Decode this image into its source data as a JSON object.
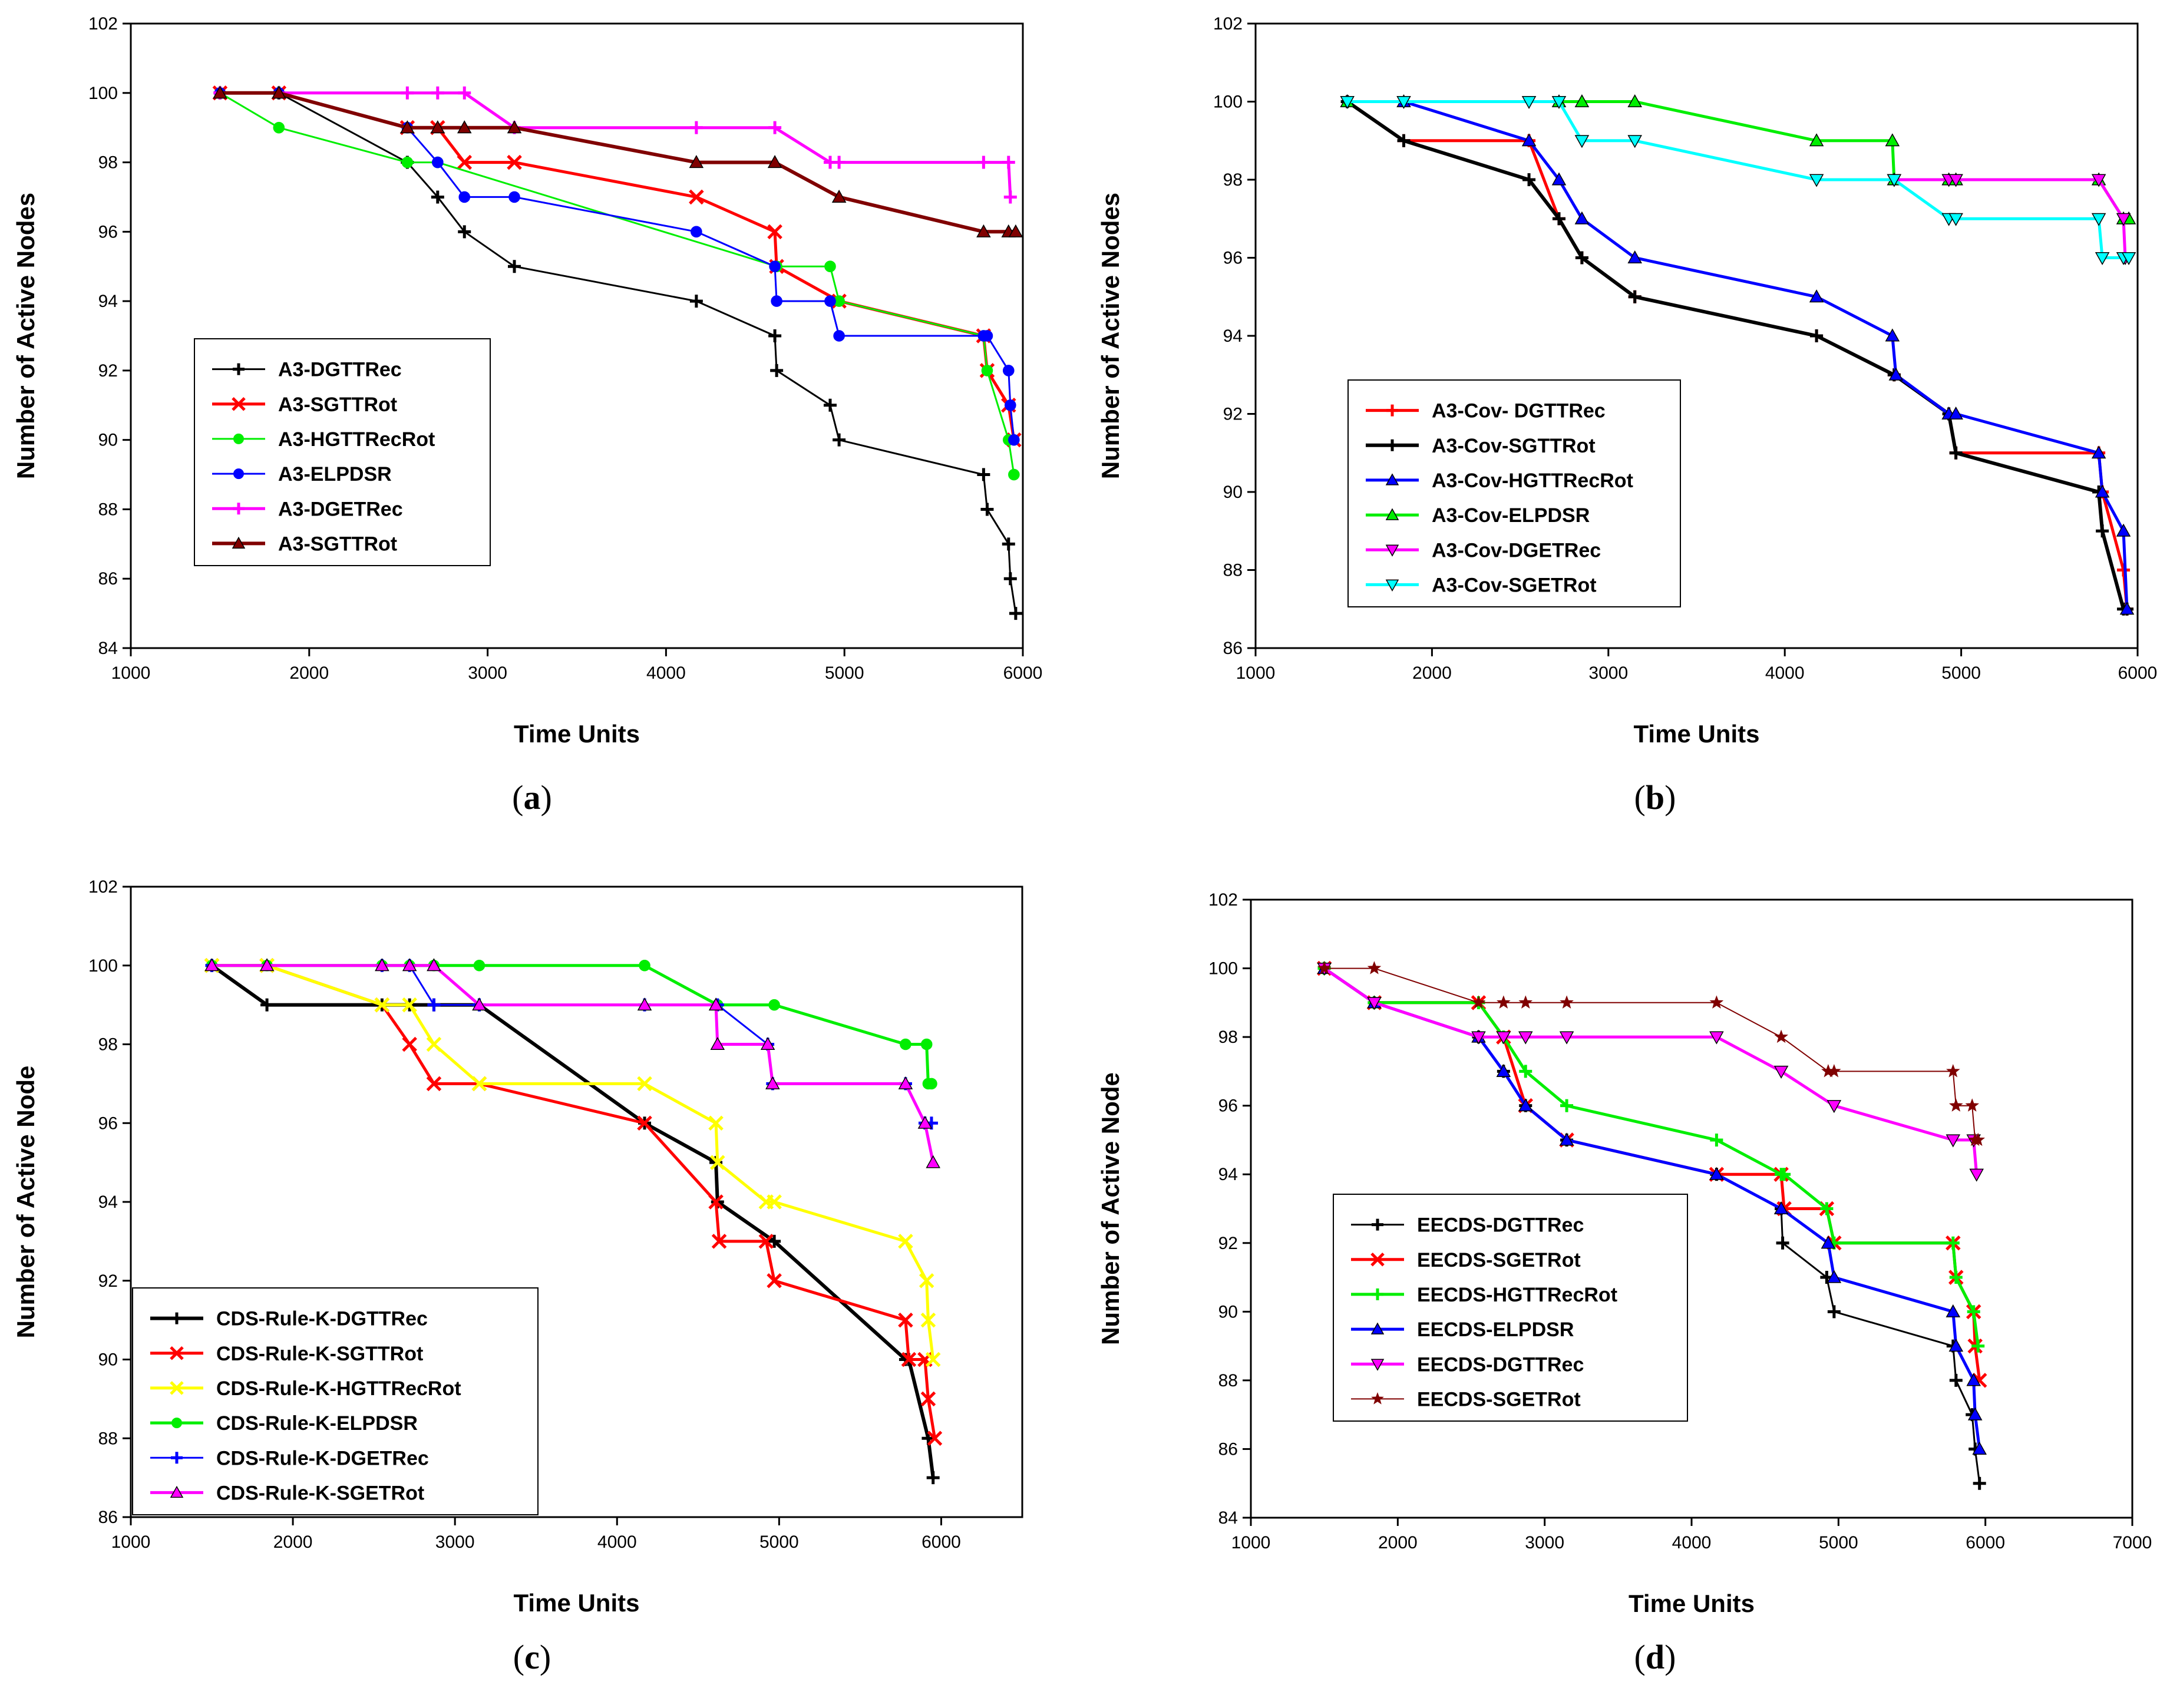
{
  "chart_data": [
    {
      "id": "a",
      "type": "line",
      "caption": "a",
      "xlabel": "Time Units",
      "ylabel": "Number of Active Nodes",
      "xlim": [
        1000,
        6000
      ],
      "ylim": [
        84,
        102
      ],
      "xticks": [
        1000,
        2000,
        3000,
        4000,
        5000,
        6000
      ],
      "yticks": [
        84,
        86,
        88,
        90,
        92,
        94,
        96,
        98,
        100,
        102
      ],
      "legend_position": "lower-left",
      "series": [
        {
          "name": "A3-DGTTRec",
          "color": "#000000",
          "marker": "plus",
          "width": 3,
          "x": [
            1500,
            1830,
            2550,
            2720,
            2870,
            3150,
            4170,
            4610,
            4620,
            4920,
            4970,
            5780,
            5800,
            5920,
            5930,
            5960
          ],
          "y": [
            100,
            100,
            98,
            97,
            96,
            95,
            94,
            93,
            92,
            91,
            90,
            89,
            88,
            87,
            86,
            85
          ]
        },
        {
          "name": "A3-SGTTRot",
          "color": "#ff0000",
          "marker": "x",
          "width": 5,
          "x": [
            1500,
            1830,
            2550,
            2720,
            2870,
            3150,
            4170,
            4610,
            4620,
            4970,
            5780,
            5800,
            5920,
            5950
          ],
          "y": [
            100,
            100,
            99,
            99,
            98,
            98,
            97,
            96,
            95,
            94,
            93,
            92,
            91,
            90
          ]
        },
        {
          "name": "A3-HGTTRecRot",
          "color": "#00ee00",
          "marker": "dot",
          "width": 3,
          "x": [
            1500,
            1830,
            2550,
            2720,
            4620,
            4920,
            4970,
            5780,
            5800,
            5920,
            5950
          ],
          "y": [
            100,
            99,
            98,
            98,
            95,
            95,
            94,
            93,
            92,
            90,
            89
          ]
        },
        {
          "name": "A3-ELPDSR",
          "color": "#0000ff",
          "marker": "dot",
          "width": 3,
          "x": [
            1500,
            1830,
            2550,
            2720,
            2870,
            3150,
            4170,
            4610,
            4620,
            4920,
            4970,
            5780,
            5800,
            5920,
            5930,
            5950
          ],
          "y": [
            100,
            100,
            99,
            98,
            97,
            97,
            96,
            95,
            94,
            94,
            93,
            93,
            93,
            92,
            91,
            90
          ]
        },
        {
          "name": "A3-DGETRec",
          "color": "#ff00ff",
          "marker": "plus",
          "width": 5,
          "x": [
            1500,
            2550,
            2720,
            2870,
            3150,
            4170,
            4610,
            4920,
            4970,
            5780,
            5920,
            5930
          ],
          "y": [
            100,
            100,
            100,
            100,
            99,
            99,
            99,
            98,
            98,
            98,
            98,
            97
          ]
        },
        {
          "name": "A3-SGTTRot",
          "color": "#800000",
          "marker": "triangle",
          "width": 6,
          "x": [
            1500,
            1830,
            2550,
            2720,
            2870,
            3150,
            4170,
            4610,
            4970,
            5780,
            5920,
            5960
          ],
          "y": [
            100,
            100,
            99,
            99,
            99,
            99,
            98,
            98,
            97,
            96,
            96,
            96
          ]
        }
      ]
    },
    {
      "id": "b",
      "type": "line",
      "caption": "b",
      "xlabel": "Time Units",
      "ylabel": "Number of Active Nodes",
      "xlim": [
        1000,
        6000
      ],
      "ylim": [
        86,
        102
      ],
      "xticks": [
        1000,
        2000,
        3000,
        4000,
        5000,
        6000
      ],
      "yticks": [
        86,
        88,
        90,
        92,
        94,
        96,
        98,
        100,
        102
      ],
      "legend_position": "lower-left",
      "series": [
        {
          "name": "A3-Cov- DGTTRec",
          "color": "#ff0000",
          "marker": "plus",
          "width": 5,
          "x": [
            1520,
            1840,
            2550,
            2720,
            2850,
            3150,
            4180,
            4620,
            4930,
            4970,
            5780,
            5800,
            5920,
            5940
          ],
          "y": [
            100,
            99,
            99,
            97,
            96,
            95,
            94,
            93,
            92,
            91,
            91,
            90,
            88,
            87
          ]
        },
        {
          "name": "A3-Cov-SGTTRot",
          "color": "#000000",
          "marker": "plus",
          "width": 6,
          "x": [
            1520,
            1840,
            2550,
            2720,
            2850,
            3150,
            4180,
            4620,
            4930,
            4970,
            5780,
            5800,
            5920,
            5940
          ],
          "y": [
            100,
            99,
            98,
            97,
            96,
            95,
            94,
            93,
            92,
            91,
            90,
            89,
            87,
            87
          ]
        },
        {
          "name": "A3-Cov-HGTTRecRot",
          "color": "#0000ff",
          "marker": "triangle",
          "width": 5,
          "x": [
            1520,
            1840,
            2550,
            2720,
            2850,
            3150,
            4180,
            4610,
            4630,
            4930,
            4970,
            5780,
            5800,
            5920,
            5940
          ],
          "y": [
            100,
            100,
            99,
            98,
            97,
            96,
            95,
            94,
            93,
            92,
            92,
            91,
            90,
            89,
            87
          ]
        },
        {
          "name": "A3-Cov-ELPDSR",
          "color": "#00ee00",
          "marker": "triangle",
          "width": 5,
          "x": [
            1520,
            2720,
            2850,
            3150,
            4180,
            4610,
            4620,
            4930,
            4970,
            5780,
            5920,
            5950
          ],
          "y": [
            100,
            100,
            100,
            100,
            99,
            99,
            98,
            98,
            98,
            98,
            97,
            97
          ]
        },
        {
          "name": "A3-Cov-DGETRec",
          "color": "#ff00ff",
          "marker": "tri-down",
          "width": 5,
          "x": [
            4620,
            4930,
            4970,
            5780,
            5920,
            5930
          ],
          "y": [
            98,
            98,
            98,
            98,
            97,
            96
          ]
        },
        {
          "name": "A3-Cov-SGETRot",
          "color": "#00ffff",
          "marker": "tri-down",
          "width": 5,
          "x": [
            1520,
            1840,
            2550,
            2720,
            2850,
            3150,
            4180,
            4620,
            4930,
            4970,
            5780,
            5800,
            5920,
            5950
          ],
          "y": [
            100,
            100,
            100,
            100,
            99,
            99,
            98,
            98,
            97,
            97,
            97,
            96,
            96,
            96
          ]
        }
      ]
    },
    {
      "id": "c",
      "type": "line",
      "caption": "c",
      "xlabel": "Time Units",
      "ylabel": "Number of Active Node",
      "xlim": [
        1000,
        6500
      ],
      "ylim": [
        86,
        102
      ],
      "xticks": [
        1000,
        2000,
        3000,
        4000,
        5000,
        6000
      ],
      "yticks": [
        86,
        88,
        90,
        92,
        94,
        96,
        98,
        100,
        102
      ],
      "legend_position": "lower-left",
      "series": [
        {
          "name": "CDS-Rule-K-DGTTRec",
          "color": "#000000",
          "marker": "plus",
          "width": 6,
          "x": [
            1500,
            1840,
            2550,
            2720,
            2870,
            3150,
            4170,
            4610,
            4620,
            4970,
            5780,
            5800,
            5920,
            5950
          ],
          "y": [
            100,
            99,
            99,
            99,
            99,
            99,
            96,
            95,
            94,
            93,
            90,
            90,
            88,
            87
          ]
        },
        {
          "name": "CDS-Rule-K-SGTTRot",
          "color": "#ff0000",
          "marker": "x",
          "width": 5,
          "x": [
            1500,
            1840,
            2550,
            2720,
            2870,
            3150,
            4170,
            4610,
            4630,
            4920,
            4970,
            5780,
            5800,
            5900,
            5920,
            5960
          ],
          "y": [
            100,
            100,
            99,
            98,
            97,
            97,
            96,
            94,
            93,
            93,
            92,
            91,
            90,
            90,
            89,
            88
          ]
        },
        {
          "name": "CDS-Rule-K-HGTTRecRot",
          "color": "#ffff00",
          "marker": "x",
          "width": 5,
          "x": [
            1500,
            1840,
            2550,
            2720,
            2870,
            3150,
            4170,
            4610,
            4620,
            4920,
            4970,
            5780,
            5910,
            5920,
            5950
          ],
          "y": [
            100,
            100,
            99,
            99,
            98,
            97,
            97,
            96,
            95,
            94,
            94,
            93,
            92,
            91,
            90
          ]
        },
        {
          "name": "CDS-Rule-K-ELPDSR",
          "color": "#00ee00",
          "marker": "dot",
          "width": 5,
          "x": [
            1500,
            1840,
            2550,
            2720,
            2870,
            3150,
            4170,
            4620,
            4970,
            5780,
            5910,
            5920,
            5940
          ],
          "y": [
            100,
            100,
            100,
            100,
            100,
            100,
            100,
            99,
            99,
            98,
            98,
            97,
            97
          ]
        },
        {
          "name": "CDS-Rule-K-DGETRec",
          "color": "#0000ff",
          "marker": "plus",
          "width": 3,
          "x": [
            1500,
            2550,
            2720,
            2870,
            3150,
            4170,
            4620,
            4930,
            4960,
            5780,
            5900,
            5940
          ],
          "y": [
            100,
            100,
            100,
            99,
            99,
            99,
            99,
            98,
            97,
            97,
            96,
            96
          ]
        },
        {
          "name": "CDS-Rule-K-SGETRot",
          "color": "#ff00ff",
          "marker": "triangle",
          "width": 5,
          "x": [
            1500,
            1840,
            2550,
            2720,
            2870,
            3150,
            4170,
            4610,
            4620,
            4930,
            4960,
            5780,
            5900,
            5950
          ],
          "y": [
            100,
            100,
            100,
            100,
            100,
            99,
            99,
            99,
            98,
            98,
            97,
            97,
            96,
            95
          ]
        }
      ]
    },
    {
      "id": "d",
      "type": "line",
      "caption": "d",
      "xlabel": "Time Units",
      "ylabel": "Number of Active Node",
      "xlim": [
        1000,
        7000
      ],
      "ylim": [
        84,
        102
      ],
      "xticks": [
        1000,
        2000,
        3000,
        4000,
        5000,
        6000,
        7000
      ],
      "yticks": [
        84,
        86,
        88,
        90,
        92,
        94,
        96,
        98,
        100,
        102
      ],
      "legend_position": "lower-left",
      "series": [
        {
          "name": "EECDS-DGTTRec",
          "color": "#000000",
          "marker": "plus",
          "width": 3,
          "x": [
            1500,
            1840,
            2550,
            2720,
            2870,
            3150,
            4170,
            4610,
            4620,
            4920,
            4970,
            5780,
            5800,
            5910,
            5930,
            5960
          ],
          "y": [
            100,
            99,
            98,
            97,
            96,
            95,
            94,
            93,
            92,
            91,
            90,
            89,
            88,
            87,
            86,
            85
          ]
        },
        {
          "name": "EECDS-SGETRot",
          "color": "#ff0000",
          "marker": "x",
          "width": 5,
          "x": [
            1500,
            1840,
            2550,
            2720,
            2870,
            3150,
            4170,
            4610,
            4630,
            4920,
            4970,
            5780,
            5800,
            5920,
            5930,
            5960
          ],
          "y": [
            100,
            99,
            99,
            98,
            96,
            95,
            94,
            94,
            93,
            93,
            92,
            92,
            91,
            90,
            89,
            88
          ]
        },
        {
          "name": "EECDS-HGTTRecRot",
          "color": "#00ee00",
          "marker": "plus",
          "width": 5,
          "x": [
            1500,
            1840,
            2550,
            2720,
            2870,
            3150,
            4170,
            4610,
            4630,
            4920,
            4970,
            5780,
            5800,
            5920,
            5950
          ],
          "y": [
            100,
            99,
            99,
            98,
            97,
            96,
            95,
            94,
            94,
            93,
            92,
            92,
            91,
            90,
            89
          ]
        },
        {
          "name": "EECDS-ELPDSR",
          "color": "#0000ff",
          "marker": "triangle",
          "width": 5,
          "x": [
            1500,
            1840,
            2550,
            2720,
            2870,
            3150,
            4170,
            4610,
            4930,
            4970,
            5780,
            5800,
            5920,
            5930,
            5960
          ],
          "y": [
            100,
            99,
            98,
            97,
            96,
            95,
            94,
            93,
            92,
            91,
            90,
            89,
            88,
            87,
            86
          ]
        },
        {
          "name": "EECDS-DGTTRec",
          "color": "#ff00ff",
          "marker": "tri-down",
          "width": 5,
          "x": [
            1500,
            1840,
            2550,
            2720,
            2870,
            3150,
            4170,
            4610,
            4970,
            5780,
            5920,
            5940
          ],
          "y": [
            100,
            99,
            98,
            98,
            98,
            98,
            98,
            97,
            96,
            95,
            95,
            94
          ]
        },
        {
          "name": "EECDS-SGETRot",
          "color": "#800000",
          "marker": "star",
          "width": 2,
          "x": [
            1500,
            1840,
            2550,
            2720,
            2870,
            3150,
            4170,
            4610,
            4930,
            4970,
            5780,
            5800,
            5910,
            5930,
            5950
          ],
          "y": [
            100,
            100,
            99,
            99,
            99,
            99,
            99,
            98,
            97,
            97,
            97,
            96,
            96,
            95,
            95
          ]
        }
      ]
    }
  ]
}
